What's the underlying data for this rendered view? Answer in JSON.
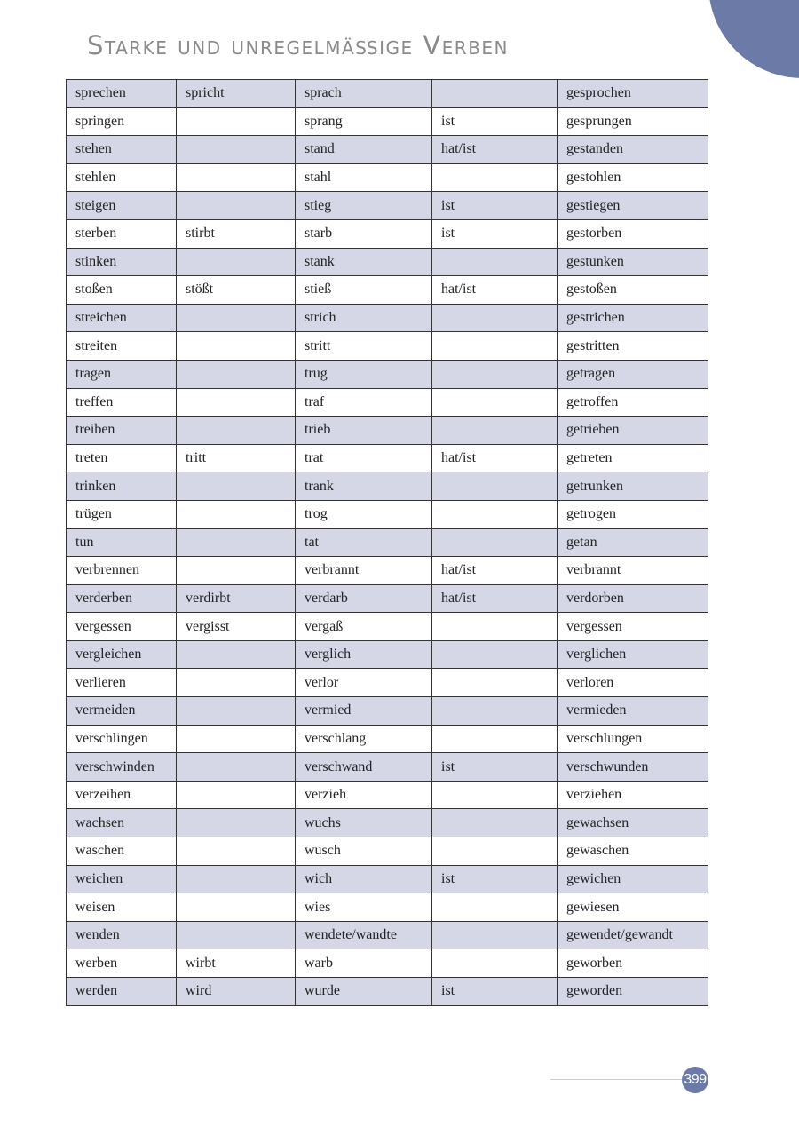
{
  "header": {
    "title": "Starke und unregelmäßige Verben"
  },
  "colors": {
    "accent": "#6c7aa8",
    "row_shade": "#d5d7e6"
  },
  "table": {
    "rows": [
      [
        "sprechen",
        "spricht",
        "sprach",
        "",
        "gesprochen"
      ],
      [
        "springen",
        "",
        "sprang",
        "ist",
        "gesprungen"
      ],
      [
        "stehen",
        "",
        "stand",
        "hat/ist",
        "gestanden"
      ],
      [
        "stehlen",
        "",
        "stahl",
        "",
        "gestohlen"
      ],
      [
        "steigen",
        "",
        "stieg",
        "ist",
        "gestiegen"
      ],
      [
        "sterben",
        "stirbt",
        "starb",
        "ist",
        "gestorben"
      ],
      [
        "stinken",
        "",
        "stank",
        "",
        "gestunken"
      ],
      [
        "stoßen",
        "stößt",
        "stieß",
        "hat/ist",
        "gestoßen"
      ],
      [
        "streichen",
        "",
        "strich",
        "",
        "gestrichen"
      ],
      [
        "streiten",
        "",
        "stritt",
        "",
        "gestritten"
      ],
      [
        "tragen",
        "",
        "trug",
        "",
        "getragen"
      ],
      [
        "treffen",
        "",
        "traf",
        "",
        "getroffen"
      ],
      [
        "treiben",
        "",
        "trieb",
        "",
        "getrieben"
      ],
      [
        "treten",
        "tritt",
        "trat",
        "hat/ist",
        "getreten"
      ],
      [
        "trinken",
        "",
        "trank",
        "",
        "getrunken"
      ],
      [
        "trügen",
        "",
        "trog",
        "",
        "getrogen"
      ],
      [
        "tun",
        "",
        "tat",
        "",
        "getan"
      ],
      [
        "verbrennen",
        "",
        "verbrannt",
        "hat/ist",
        "verbrannt"
      ],
      [
        "verderben",
        "verdirbt",
        "verdarb",
        "hat/ist",
        "verdorben"
      ],
      [
        "vergessen",
        "vergisst",
        "vergaß",
        "",
        "vergessen"
      ],
      [
        "vergleichen",
        "",
        "verglich",
        "",
        "verglichen"
      ],
      [
        "verlieren",
        "",
        "verlor",
        "",
        "verloren"
      ],
      [
        "vermeiden",
        "",
        "vermied",
        "",
        "vermieden"
      ],
      [
        "verschlingen",
        "",
        "verschlang",
        "",
        "verschlungen"
      ],
      [
        "verschwinden",
        "",
        "verschwand",
        "ist",
        "verschwunden"
      ],
      [
        "verzeihen",
        "",
        "verzieh",
        "",
        "verziehen"
      ],
      [
        "wachsen",
        "",
        "wuchs",
        "",
        "gewachsen"
      ],
      [
        "waschen",
        "",
        "wusch",
        "",
        "gewaschen"
      ],
      [
        "weichen",
        "",
        "wich",
        "ist",
        "gewichen"
      ],
      [
        "weisen",
        "",
        "wies",
        "",
        "gewiesen"
      ],
      [
        "wenden",
        "",
        "wendete/wandte",
        "",
        "gewendet/gewandt"
      ],
      [
        "werben",
        "wirbt",
        "warb",
        "",
        "geworben"
      ],
      [
        "werden",
        "wird",
        "wurde",
        "ist",
        "geworden"
      ]
    ]
  },
  "footer": {
    "page_number": "399"
  }
}
